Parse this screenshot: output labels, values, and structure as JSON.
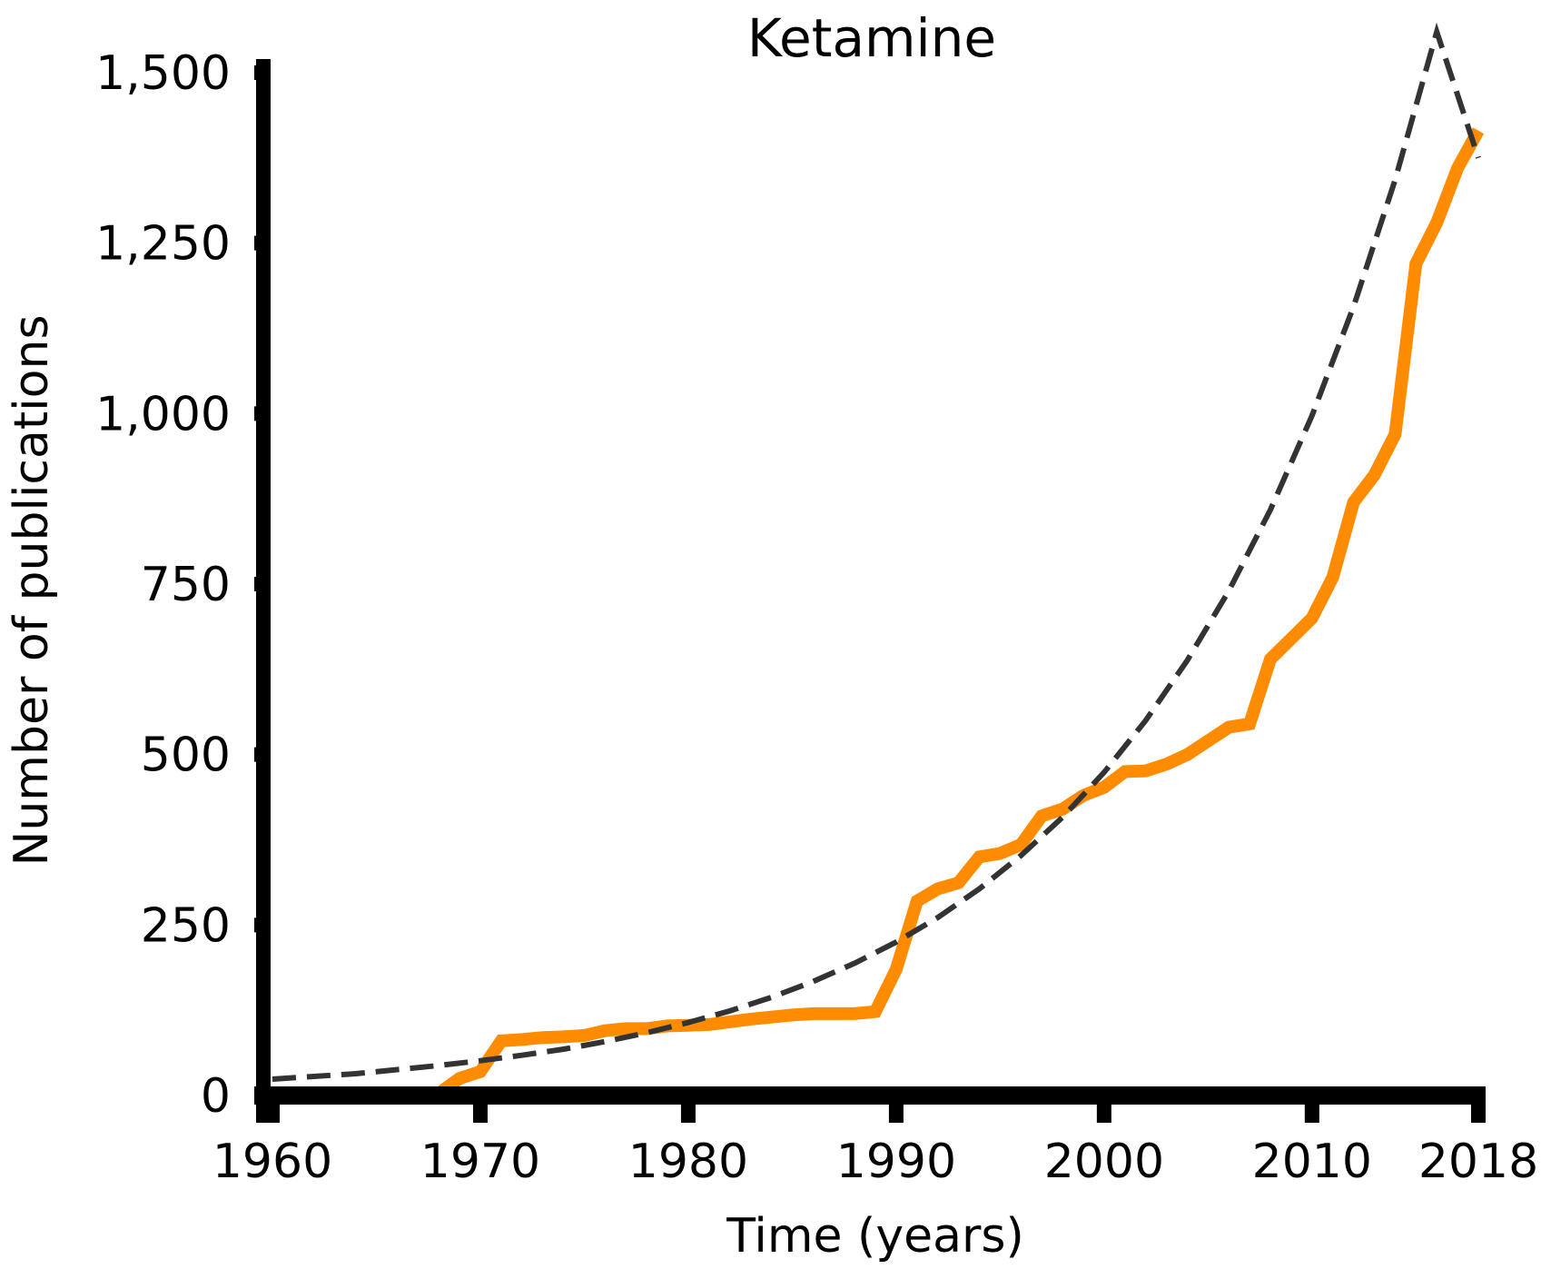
{
  "chart_data": {
    "type": "line",
    "title": "Ketamine",
    "xlabel": "Time (years)",
    "ylabel": "Number of publications",
    "xlim": [
      1960,
      2018
    ],
    "ylim": [
      0,
      1500
    ],
    "x_ticks": [
      {
        "value": 1960,
        "label": "1960"
      },
      {
        "value": 1970,
        "label": "1970"
      },
      {
        "value": 1980,
        "label": "1980"
      },
      {
        "value": 1990,
        "label": "1990"
      },
      {
        "value": 2000,
        "label": "2000"
      },
      {
        "value": 2010,
        "label": "2010"
      },
      {
        "value": 2018,
        "label": "2018"
      }
    ],
    "y_ticks": [
      {
        "value": 0,
        "label": "0"
      },
      {
        "value": 250,
        "label": "250"
      },
      {
        "value": 500,
        "label": "500"
      },
      {
        "value": 750,
        "label": "750"
      },
      {
        "value": 1000,
        "label": "1,000"
      },
      {
        "value": 1250,
        "label": "1,250"
      },
      {
        "value": 1500,
        "label": "1,500"
      }
    ],
    "grid": false,
    "legend": "none",
    "series": [
      {
        "style": "solid",
        "color": "#FF8C00",
        "x": [
          1960,
          1961,
          1962,
          1963,
          1964,
          1965,
          1966,
          1967,
          1968,
          1969,
          1970,
          1971,
          1972,
          1973,
          1974,
          1975,
          1976,
          1977,
          1978,
          1979,
          1980,
          1981,
          1982,
          1983,
          1984,
          1985,
          1986,
          1987,
          1988,
          1989,
          1990,
          1991,
          1992,
          1993,
          1994,
          1995,
          1996,
          1997,
          1998,
          1999,
          2000,
          2001,
          2002,
          2003,
          2004,
          2005,
          2006,
          2007,
          2008,
          2009,
          2010,
          2011,
          2012,
          2013,
          2014,
          2015,
          2016,
          2017,
          2018
        ],
        "y": [
          0,
          0,
          0,
          0,
          0,
          0,
          0,
          1,
          3,
          25,
          35,
          80,
          82,
          85,
          86,
          88,
          95,
          98,
          98,
          102,
          103,
          104,
          108,
          112,
          115,
          118,
          120,
          120,
          120,
          123,
          185,
          285,
          303,
          312,
          350,
          355,
          368,
          410,
          420,
          440,
          452,
          475,
          476,
          486,
          500,
          520,
          540,
          545,
          640,
          670,
          700,
          760,
          870,
          910,
          970,
          1220,
          1280,
          1360,
          1415
        ]
      },
      {
        "style": "dashed",
        "color": "#333333",
        "x": [
          1960,
          1962,
          1964,
          1966,
          1968,
          1970,
          1972,
          1974,
          1976,
          1978,
          1980,
          1982,
          1984,
          1986,
          1988,
          1990,
          1992,
          1994,
          1996,
          1998,
          2000,
          2002,
          2004,
          2006,
          2008,
          2010,
          2012,
          2014,
          2016,
          2018
        ],
        "y": [
          24,
          28,
          32,
          38,
          44,
          51,
          59,
          68,
          79,
          92,
          107,
          124,
          144,
          167,
          194,
          225,
          261,
          303,
          352,
          408,
          474,
          550,
          638,
          740,
          859,
          997,
          1157,
          1343,
          1560,
          1375
        ]
      }
    ]
  }
}
